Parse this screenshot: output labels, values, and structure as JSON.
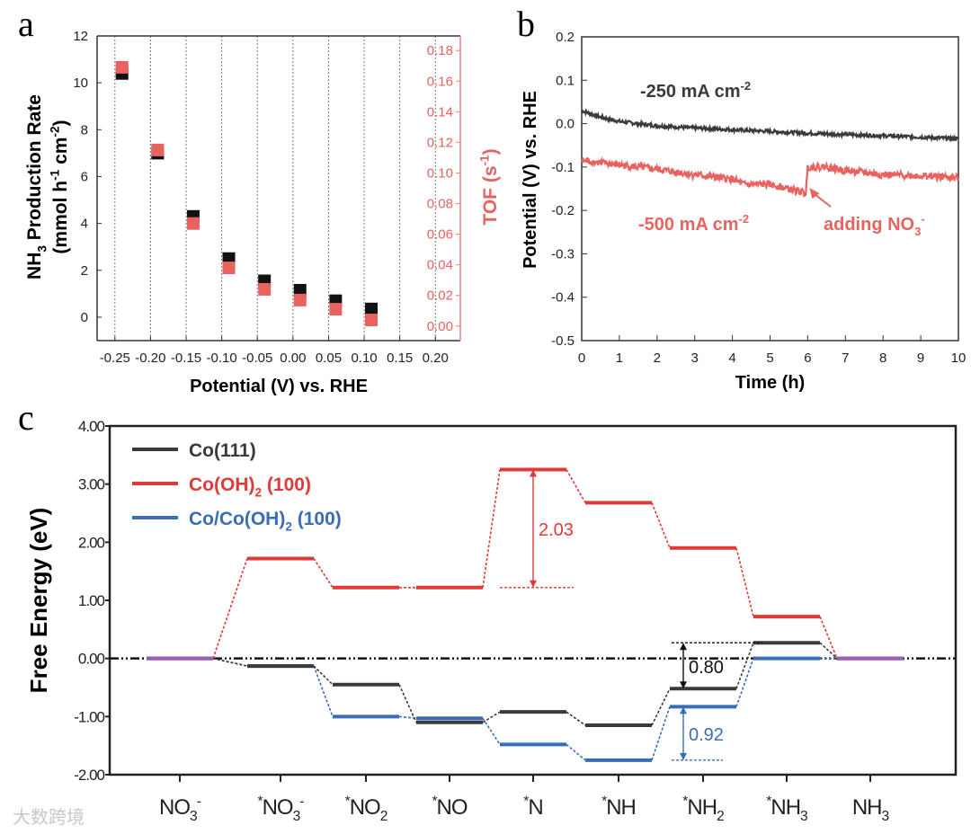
{
  "panel_labels": [
    "a",
    "b",
    "c"
  ],
  "colors": {
    "black": "#111111",
    "red": "#e8625f",
    "red_dark": "#e03a36",
    "gray": "#3a3a3a",
    "blue": "#3a6db8",
    "purple": "#9a5fb0",
    "axis_red": "#f08080"
  },
  "watermark": "大数跨境",
  "chart_data": [
    {
      "id": "a",
      "type": "scatter",
      "xlabel": "Potential (V) vs. RHE",
      "ylabel_lines": [
        "NH_{3} Production Rate",
        "(mmol h^{-1} cm^{-2})"
      ],
      "y2label": "TOF (s^{-1})",
      "xlim": [
        -0.275,
        0.235
      ],
      "ylim": [
        -1,
        12
      ],
      "y2lim": [
        -0.0095,
        0.1895
      ],
      "xticks": [
        "-0.25",
        "-0.20",
        "-0.15",
        "-0.10",
        "-0.05",
        "0.00",
        "0.05",
        "0.10",
        "0.15",
        "0.20"
      ],
      "xtick_values": [
        -0.25,
        -0.2,
        -0.15,
        -0.1,
        -0.05,
        0,
        0.05,
        0.1,
        0.15,
        0.2
      ],
      "yticks": [
        "0",
        "2",
        "4",
        "6",
        "8",
        "10",
        "12"
      ],
      "ytick_values": [
        0,
        2,
        4,
        6,
        8,
        10,
        12
      ],
      "y2ticks": [
        "0.00",
        "0.02",
        "0.04",
        "0.06",
        "0.08",
        "0.10",
        "0.12",
        "0.14",
        "0.16",
        "0.18"
      ],
      "y2tick_values": [
        0,
        0.02,
        0.04,
        0.06,
        0.08,
        0.1,
        0.12,
        0.14,
        0.16,
        0.18
      ],
      "grid": "vertical dotted",
      "x": [
        -0.24,
        -0.19,
        -0.14,
        -0.09,
        -0.04,
        0.01,
        0.06,
        0.11
      ],
      "series": [
        {
          "name": "NH3 Production Rate",
          "axis": "left",
          "values": [
            10.4,
            7.0,
            4.3,
            2.5,
            1.55,
            1.15,
            0.7,
            0.35
          ]
        },
        {
          "name": "TOF",
          "axis": "right",
          "values": [
            0.169,
            0.115,
            0.067,
            0.038,
            0.024,
            0.017,
            0.011,
            0.004
          ]
        }
      ]
    },
    {
      "id": "b",
      "type": "line",
      "xlabel": "Time (h)",
      "ylabel": "Potential (V) vs. RHE",
      "xlim": [
        0,
        10
      ],
      "ylim": [
        -0.5,
        0.2
      ],
      "xticks": [
        "0",
        "1",
        "2",
        "3",
        "4",
        "5",
        "6",
        "7",
        "8",
        "9",
        "10"
      ],
      "xtick_values": [
        0,
        1,
        2,
        3,
        4,
        5,
        6,
        7,
        8,
        9,
        10
      ],
      "yticks": [
        "-0.5",
        "-0.4",
        "-0.3",
        "-0.2",
        "-0.1",
        "0.0",
        "0.1",
        "0.2"
      ],
      "ytick_values": [
        -0.5,
        -0.4,
        -0.3,
        -0.2,
        -0.1,
        0,
        0.1,
        0.2
      ],
      "series": [
        {
          "name": "-250 mA cm^{-2}",
          "x": [
            0,
            0.5,
            1,
            1.5,
            2,
            3,
            4,
            5,
            6,
            7,
            8,
            9,
            10
          ],
          "y": [
            0.03,
            0.015,
            0.005,
            0.0,
            -0.005,
            -0.01,
            -0.014,
            -0.018,
            -0.022,
            -0.025,
            -0.028,
            -0.031,
            -0.035
          ]
        },
        {
          "name": "-500 mA cm^{-2}",
          "x": [
            0,
            1,
            2,
            3,
            4,
            4.3,
            5,
            5.95,
            6.0,
            6.5,
            7,
            8,
            9,
            10
          ],
          "y": [
            -0.085,
            -0.095,
            -0.105,
            -0.118,
            -0.128,
            -0.14,
            -0.14,
            -0.16,
            -0.1,
            -0.1,
            -0.108,
            -0.118,
            -0.12,
            -0.125
          ]
        }
      ],
      "annotation": {
        "text": "adding NO_{3}^{-}",
        "x": 6.0,
        "y": -0.14
      }
    },
    {
      "id": "c",
      "type": "line",
      "subtype": "free-energy-diagram",
      "ylabel": "Free Energy (eV)",
      "ylim": [
        -2,
        4
      ],
      "yticks": [
        "-2.00",
        "-1.00",
        "0.00",
        "1.00",
        "2.00",
        "3.00",
        "4.00"
      ],
      "ytick_values": [
        -2,
        -1,
        0,
        1,
        2,
        3,
        4
      ],
      "categories": [
        "NO_{3}^{-}",
        "^{*}NO_{3}^{-}",
        "^{*}NO_{2}",
        "^{*}NO",
        "^{*}N",
        "^{*}NH",
        "^{*}NH_{2}",
        "^{*}NH_{3}",
        "NH_{3}"
      ],
      "legend_position": "top-left",
      "series": [
        {
          "name": "Co(111)",
          "color": "#3a3a3a",
          "values": [
            0,
            -0.13,
            -0.45,
            -1.1,
            -0.92,
            -1.15,
            -0.52,
            0.27,
            0
          ]
        },
        {
          "name": "Co(OH)_{2} (100)",
          "color": "#e03a36",
          "values": [
            0,
            1.72,
            1.22,
            1.22,
            3.25,
            2.68,
            1.9,
            0.72,
            0
          ]
        },
        {
          "name": "Co/Co(OH)_{2} (100)",
          "color": "#3a6db8",
          "values": [
            0,
            -0.13,
            -1.0,
            -1.03,
            -1.48,
            -1.75,
            -0.83,
            0,
            0
          ]
        }
      ],
      "annotations": [
        {
          "text": "2.03",
          "category_index": 4,
          "from": 1.22,
          "to": 3.25,
          "series": 1
        },
        {
          "text": "0.80",
          "category_index": 6,
          "from": -0.52,
          "to": 0.27,
          "series": 0
        },
        {
          "text": "0.92",
          "category_index": 6,
          "from": -1.75,
          "to": -0.83,
          "series": 2
        }
      ]
    }
  ]
}
